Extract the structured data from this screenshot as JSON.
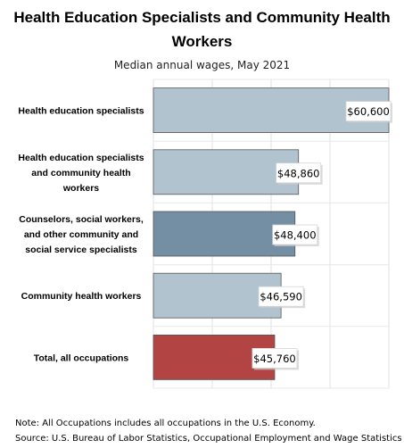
{
  "chart_data": {
    "type": "bar",
    "orientation": "horizontal",
    "title": "Health Education Specialists and Community Health Workers",
    "subtitle": "Median annual wages, May 2021",
    "categories": [
      "Health education specialists",
      "Health education specialists and community health workers",
      "Counselors, social workers, and other community and social service specialists",
      "Community health workers",
      "Total, all occupations"
    ],
    "category_lines": [
      [
        "Health education specialists"
      ],
      [
        "Health education specialists",
        "and community health",
        "workers"
      ],
      [
        "Counselors, social workers,",
        "and other community and",
        "social service specialists"
      ],
      [
        "Community health workers"
      ],
      [
        "Total, all occupations"
      ]
    ],
    "values": [
      60600,
      48860,
      48400,
      46590,
      45760
    ],
    "value_labels": [
      "$60,600",
      "$48,860",
      "$48,400",
      "$46,590",
      "$45,760"
    ],
    "bar_colors": [
      "#b1c3cf",
      "#b1c3cf",
      "#748ea4",
      "#b1c3cf",
      "#b34444"
    ],
    "xlim": [
      30000,
      60600
    ],
    "grid": true,
    "legend": "none"
  },
  "notes": {
    "note": "Note: All Occupations includes all occupations in the U.S. Economy.",
    "source": "Source: U.S. Bureau of Labor Statistics, Occupational Employment and Wage Statistics"
  }
}
